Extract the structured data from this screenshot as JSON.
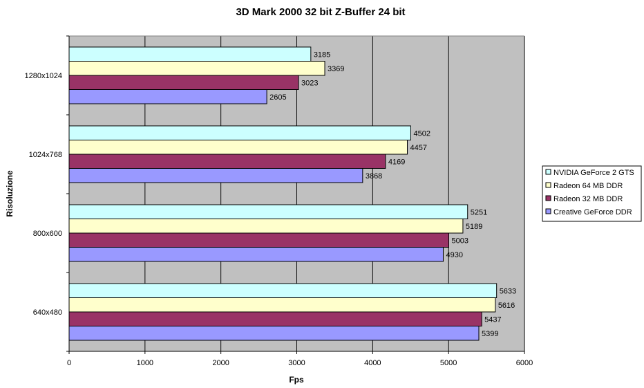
{
  "chart_data": {
    "type": "bar",
    "orientation": "horizontal",
    "title": "3D Mark 2000 32 bit Z-Buffer 24 bit",
    "xlabel": "Fps",
    "ylabel": "Risoluzione",
    "xlim": [
      0,
      6000
    ],
    "xticks": [
      0,
      1000,
      2000,
      3000,
      4000,
      5000,
      6000
    ],
    "grid": "vertical",
    "legend_position": "right",
    "plot_background": "#c0c0c0",
    "categories": [
      "1280x1024",
      "1024x768",
      "800x600",
      "640x480"
    ],
    "series": [
      {
        "name": "NVIDIA GeForce 2 GTS",
        "color": "#ccffff",
        "values": [
          3185,
          4502,
          5251,
          5633
        ]
      },
      {
        "name": "Radeon 64 MB DDR",
        "color": "#ffffcc",
        "values": [
          3369,
          4457,
          5189,
          5616
        ]
      },
      {
        "name": "Radeon 32 MB DDR",
        "color": "#993366",
        "values": [
          3023,
          4169,
          5003,
          5437
        ]
      },
      {
        "name": "Creative GeForce DDR",
        "color": "#9999ff",
        "values": [
          2605,
          3868,
          4930,
          5399
        ]
      }
    ]
  }
}
